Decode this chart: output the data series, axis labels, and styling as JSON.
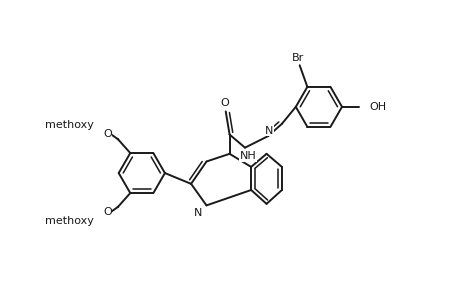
{
  "bg_color": "#ffffff",
  "lc": "#1a1a1a",
  "lw": 1.4,
  "fs": 8.0,
  "figsize": [
    4.6,
    3.0
  ],
  "dpi": 100,
  "xlim": [
    0,
    4.6
  ],
  "ylim": [
    0,
    3.0
  ]
}
